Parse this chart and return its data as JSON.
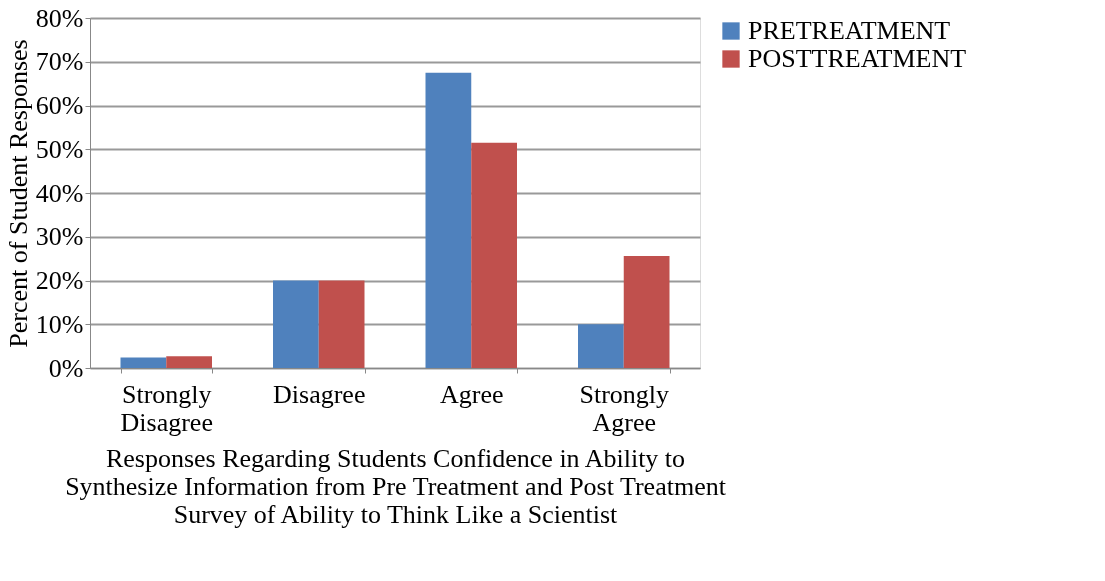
{
  "chart_data": {
    "type": "bar",
    "xlabel": "Responses Regarding Students Confidence in Ability to\nSynthesize Information from Pre Treatment and Post Treatment\nSurvey of Ability to Think Like a Scientist",
    "ylabel": "Percent of Student Responses",
    "categories": [
      "Strongly\nDisagree",
      "Disagree",
      "Agree",
      "Strongly\nAgree"
    ],
    "series": [
      {
        "name": "PRETREATMENT",
        "color": "#4f81bd",
        "values": [
          2.4,
          20,
          67.5,
          10
        ]
      },
      {
        "name": "POSTTREATMENT",
        "color": "#c0504d",
        "values": [
          2.7,
          20,
          51.5,
          25.6
        ]
      }
    ],
    "ylim": [
      0,
      80
    ],
    "yticks": [
      {
        "value": 0,
        "label": "0%"
      },
      {
        "value": 10,
        "label": "10%"
      },
      {
        "value": 20,
        "label": "20%"
      },
      {
        "value": 30,
        "label": "30%"
      },
      {
        "value": 40,
        "label": "40%"
      },
      {
        "value": 50,
        "label": "50%"
      },
      {
        "value": 60,
        "label": "60%"
      },
      {
        "value": 70,
        "label": "70%"
      },
      {
        "value": 80,
        "label": "80%"
      }
    ],
    "grid": "y",
    "legend": "right"
  }
}
